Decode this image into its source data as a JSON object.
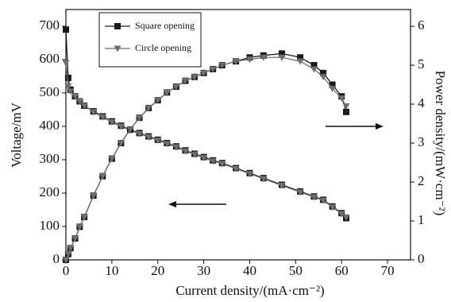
{
  "chart_data": {
    "type": "line",
    "xlabel": "Current density/(mA·cm⁻²)",
    "ylabel": "Voltage/mV",
    "y2label": "Power density/(mW·cm⁻²)",
    "x": [
      0,
      0.5,
      1,
      2,
      3,
      4,
      6,
      8,
      10,
      12,
      14,
      16,
      18,
      20,
      22,
      24,
      26,
      28,
      30,
      32,
      34,
      37,
      40,
      43,
      47,
      51,
      54,
      56,
      58,
      60,
      61
    ],
    "xlim": [
      0,
      75
    ],
    "xticks": [
      0,
      10,
      20,
      30,
      40,
      50,
      60,
      70
    ],
    "ylim": [
      0,
      750
    ],
    "yticks": [
      0,
      100,
      200,
      300,
      400,
      500,
      600,
      700
    ],
    "y2lim": [
      0,
      6.43
    ],
    "y2ticks": [
      0,
      1,
      2,
      3,
      4,
      5,
      6
    ],
    "legend": "upper left",
    "series": [
      {
        "name": "Square opening",
        "color": "#1a1a1a",
        "marker": "square",
        "values": [
          690,
          545,
          510,
          490,
          475,
          462,
          445,
          430,
          415,
          402,
          390,
          380,
          370,
          360,
          350,
          340,
          328,
          318,
          308,
          298,
          290,
          275,
          260,
          245,
          225,
          205,
          190,
          180,
          160,
          140,
          125
        ]
      },
      {
        "name": "Circle opening",
        "color": "#6e6e6e",
        "marker": "triangle-down",
        "values": [
          590,
          520,
          505,
          490,
          475,
          462,
          443,
          428,
          413,
          400,
          388,
          378,
          368,
          358,
          348,
          338,
          326,
          316,
          306,
          296,
          288,
          273,
          258,
          243,
          223,
          203,
          188,
          178,
          158,
          138,
          128
        ]
      },
      {
        "name": "Square opening",
        "color": "#1a1a1a",
        "marker": "square",
        "axis": "y2",
        "values": [
          0,
          0.15,
          0.3,
          0.55,
          0.85,
          1.1,
          1.65,
          2.15,
          2.6,
          3.0,
          3.35,
          3.65,
          3.9,
          4.1,
          4.3,
          4.45,
          4.6,
          4.7,
          4.8,
          4.9,
          5.0,
          5.1,
          5.2,
          5.25,
          5.3,
          5.2,
          5.0,
          4.8,
          4.5,
          4.2,
          3.8
        ]
      },
      {
        "name": "Circle opening",
        "color": "#6e6e6e",
        "marker": "triangle-down",
        "axis": "y2",
        "values": [
          0,
          0.15,
          0.3,
          0.55,
          0.85,
          1.1,
          1.65,
          2.15,
          2.6,
          3.0,
          3.35,
          3.65,
          3.9,
          4.1,
          4.3,
          4.45,
          4.6,
          4.7,
          4.8,
          4.9,
          5.0,
          5.1,
          5.15,
          5.2,
          5.2,
          5.1,
          4.9,
          4.7,
          4.4,
          4.15,
          3.95
        ]
      }
    ]
  }
}
